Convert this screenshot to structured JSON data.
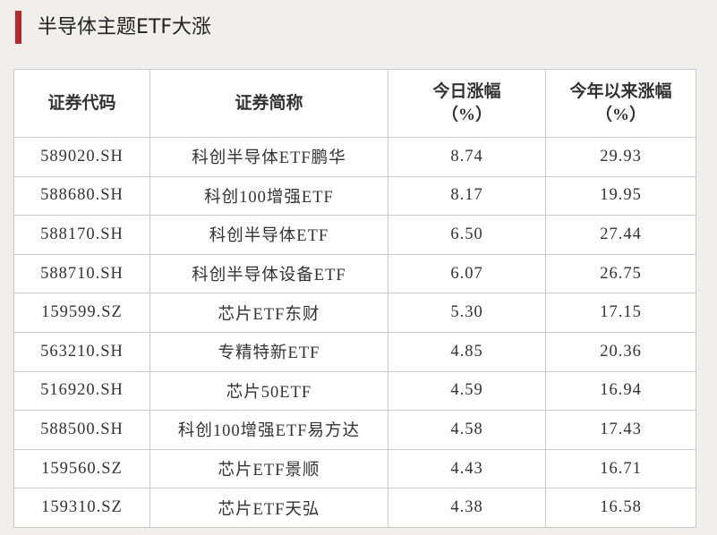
{
  "header": {
    "title": "半导体主题ETF大涨"
  },
  "table": {
    "columns": [
      "证券代码",
      "证券简称",
      "今日涨幅\n（%）",
      "今年以来涨幅\n（%）"
    ],
    "rows": [
      [
        "589020.SH",
        "科创半导体ETF鹏华",
        "8.74",
        "29.93"
      ],
      [
        "588680.SH",
        "科创100增强ETF",
        "8.17",
        "19.95"
      ],
      [
        "588170.SH",
        "科创半导体ETF",
        "6.50",
        "27.44"
      ],
      [
        "588710.SH",
        "科创半导体设备ETF",
        "6.07",
        "26.75"
      ],
      [
        "159599.SZ",
        "芯片ETF东财",
        "5.30",
        "17.15"
      ],
      [
        "563210.SH",
        "专精特新ETF",
        "4.85",
        "20.36"
      ],
      [
        "516920.SH",
        "芯片50ETF",
        "4.59",
        "16.94"
      ],
      [
        "588500.SH",
        "科创100增强ETF易方达",
        "4.58",
        "17.43"
      ],
      [
        "159560.SZ",
        "芯片ETF景顺",
        "4.43",
        "16.71"
      ],
      [
        "159310.SZ",
        "芯片ETF天弘",
        "4.38",
        "16.58"
      ]
    ]
  }
}
